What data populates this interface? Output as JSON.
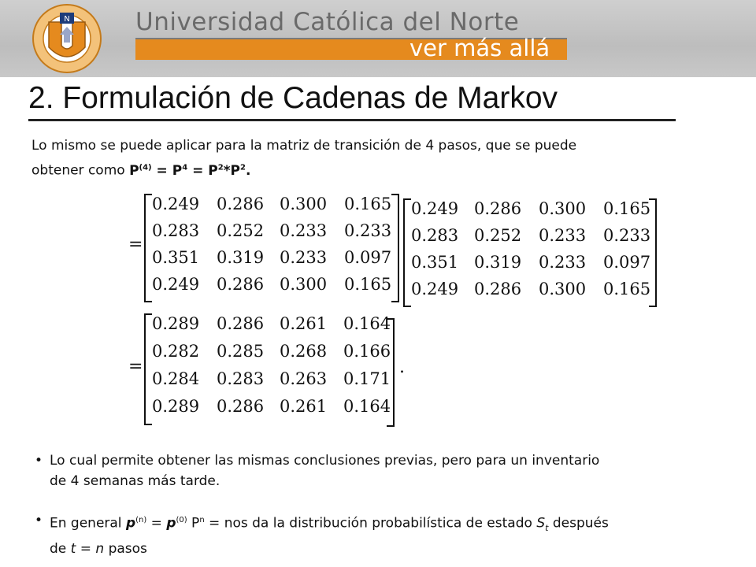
{
  "header": {
    "university_name": "Universidad Católica del Norte",
    "tagline": "ver más allá",
    "logo": {
      "top_text": "UNIVERSIDAD CATOLICA DEL NORTE",
      "bottom_text": "CHILE",
      "letter": "U",
      "badge": "N",
      "icon": "university-shield-icon"
    }
  },
  "slide": {
    "title": "2. Formulación de Cadenas de Markov",
    "intro_line1": "Lo mismo se puede aplicar para la matriz de transición de 4 pasos, que se puede",
    "intro_line2_prefix": "obtener como ",
    "formula": {
      "p": "P",
      "p_sup": "(4)",
      "eq1": " = P",
      "sup4": "4",
      "eq2": " = P",
      "sup2a": "2",
      "star": "*P",
      "sup2b": "2",
      "dot": "."
    }
  },
  "equations": {
    "equals_sign": "=",
    "product_left": [
      [
        "0.249",
        "0.286",
        "0.300",
        "0.165"
      ],
      [
        "0.283",
        "0.252",
        "0.233",
        "0.233"
      ],
      [
        "0.351",
        "0.319",
        "0.233",
        "0.097"
      ],
      [
        "0.249",
        "0.286",
        "0.300",
        "0.165"
      ]
    ],
    "product_right": [
      [
        "0.249",
        "0.286",
        "0.300",
        "0.165"
      ],
      [
        "0.283",
        "0.252",
        "0.233",
        "0.233"
      ],
      [
        "0.351",
        "0.319",
        "0.233",
        "0.097"
      ],
      [
        "0.249",
        "0.286",
        "0.300",
        "0.165"
      ]
    ],
    "result": [
      [
        "0.289",
        "0.286",
        "0.261",
        "0.164"
      ],
      [
        "0.282",
        "0.285",
        "0.268",
        "0.166"
      ],
      [
        "0.284",
        "0.283",
        "0.263",
        "0.171"
      ],
      [
        "0.289",
        "0.286",
        "0.261",
        "0.164"
      ]
    ],
    "trailing_period": "."
  },
  "bullets": {
    "marker": "•",
    "b1_line1": "Lo cual permite obtener las mismas conclusiones previas, pero para un inventario",
    "b1_line2": "de 4 semanas más tarde.",
    "b2": {
      "t1": "En general ",
      "p1": "p",
      "s1": "(n)",
      "t2": " = ",
      "p2": "p",
      "s2": "(0)",
      "t3": " P",
      "s3": "n",
      "t4": " = nos da la distribución probabilística de estado ",
      "St": "S",
      "sub_t": "t",
      "t5": " después",
      "t6": "de ",
      "tvar": "t",
      "t7": " = ",
      "nvar": "n",
      "t8": " pasos"
    }
  }
}
